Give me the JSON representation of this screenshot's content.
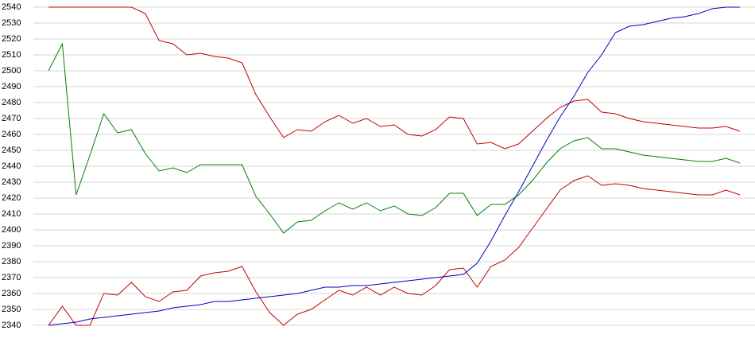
{
  "chart_data": {
    "type": "line",
    "categories": [
      null,
      null,
      null,
      null,
      null,
      null,
      null,
      null,
      null,
      null,
      null,
      null,
      null,
      null,
      null,
      null,
      null,
      null,
      null,
      null,
      null,
      null,
      null,
      null,
      null,
      null,
      null,
      null,
      null,
      null,
      null,
      null,
      null,
      null,
      null,
      null,
      null,
      null,
      null,
      null,
      null,
      null,
      null,
      null,
      null,
      null,
      null,
      null,
      null,
      null,
      null
    ],
    "series": [
      {
        "color": "#c00000",
        "values": [
          2540,
          2540,
          2540,
          2540,
          2540,
          2540,
          2540,
          2536,
          2519,
          2517,
          2510,
          2511,
          2509,
          2508,
          2505,
          2485,
          2471,
          2458,
          2463,
          2462,
          2468,
          2472,
          2467,
          2470,
          2465,
          2466,
          2460,
          2459,
          2463,
          2471,
          2470,
          2454,
          2455,
          2451,
          2454,
          2462,
          2470,
          2477,
          2481,
          2482,
          2474,
          2473,
          2470,
          2468,
          2467,
          2466,
          2465,
          2464,
          2464,
          2465,
          2462
        ]
      },
      {
        "color": "#008000",
        "values": [
          2500,
          2517,
          2422,
          2447,
          2473,
          2461,
          2463,
          2448,
          2437,
          2439,
          2436,
          2441,
          2441,
          2441,
          2441,
          2421,
          2410,
          2398,
          2405,
          2406,
          2412,
          2417,
          2413,
          2417,
          2412,
          2415,
          2410,
          2409,
          2414,
          2423,
          2423,
          2409,
          2416,
          2416,
          2422,
          2431,
          2442,
          2451,
          2456,
          2458,
          2451,
          2451,
          2449,
          2447,
          2446,
          2445,
          2444,
          2443,
          2443,
          2445,
          2442
        ]
      },
      {
        "color": "#c00000",
        "values": [
          2340,
          2352,
          2340,
          2340,
          2360,
          2359,
          2367,
          2358,
          2355,
          2361,
          2362,
          2371,
          2373,
          2374,
          2377,
          2361,
          2348,
          2340,
          2347,
          2350,
          2356,
          2362,
          2359,
          2364,
          2359,
          2364,
          2360,
          2359,
          2365,
          2375,
          2376,
          2364,
          2377,
          2381,
          2389,
          2401,
          2413,
          2425,
          2431,
          2434,
          2428,
          2429,
          2428,
          2426,
          2425,
          2424,
          2423,
          2422,
          2422,
          2425,
          2422
        ]
      },
      {
        "color": "#0000c0",
        "values": [
          2340,
          2341,
          2342,
          2344,
          2345,
          2346,
          2347,
          2348,
          2349,
          2351,
          2352,
          2353,
          2355,
          2355,
          2356,
          2357,
          2358,
          2359,
          2360,
          2362,
          2364,
          2364,
          2365,
          2365,
          2366,
          2367,
          2368,
          2369,
          2370,
          2371,
          2372,
          2379,
          2393,
          2409,
          2424,
          2440,
          2456,
          2471,
          2484,
          2499,
          2510,
          2524,
          2528,
          2529,
          2531,
          2533,
          2534,
          2536,
          2539,
          2540,
          2540
        ]
      }
    ],
    "ylim": [
      2340,
      2540
    ],
    "yticks": [
      2340,
      2350,
      2360,
      2370,
      2380,
      2390,
      2400,
      2410,
      2420,
      2430,
      2440,
      2450,
      2460,
      2470,
      2480,
      2490,
      2500,
      2510,
      2520,
      2530,
      2540
    ],
    "grid": true
  }
}
